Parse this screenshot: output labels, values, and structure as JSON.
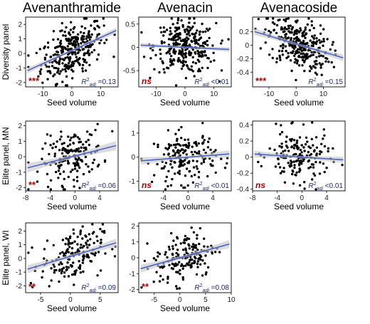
{
  "colors": {
    "point": "#000000",
    "fit_line": "#4a63c8",
    "ci_band": "#c9c9c9",
    "significance": "#b30000",
    "r2_text": "#1a2c7a"
  },
  "chart_data": [
    {
      "type": "scatter",
      "row": 0,
      "col": 0,
      "column_title": "Avenanthramide",
      "row_label": "Diversity panel",
      "xlabel": "Seed volume",
      "xlim": [
        -16,
        16
      ],
      "ylim": [
        -2.3,
        2.5
      ],
      "xticks": [
        -10,
        0,
        10
      ],
      "xtick_labels": [
        "-10",
        "0",
        "10"
      ],
      "yticks": [
        -2,
        -1,
        0,
        1,
        2
      ],
      "ytick_labels": [
        "-2",
        "-1",
        "0",
        "1",
        "2"
      ],
      "fit": {
        "slope": 0.09,
        "intercept": 0.2,
        "ci": 0.2
      },
      "significance": "***",
      "r2_label": "=0.13",
      "n_points": 300
    },
    {
      "type": "scatter",
      "row": 0,
      "col": 1,
      "column_title": "Avenacin",
      "row_label": "",
      "xlabel": "Seed volume",
      "xlim": [
        -16,
        16
      ],
      "ylim": [
        -0.85,
        0.65
      ],
      "xticks": [
        -10,
        0,
        10
      ],
      "xtick_labels": [
        "-10",
        "0",
        "10"
      ],
      "yticks": [
        -0.5,
        0,
        0.5
      ],
      "ytick_labels": [
        "-0.5",
        "0",
        "0.5"
      ],
      "fit": {
        "slope": -0.003,
        "intercept": 0.0,
        "ci": 0.05
      },
      "significance": "ns",
      "r2_label": "<0.01",
      "n_points": 300
    },
    {
      "type": "scatter",
      "row": 0,
      "col": 2,
      "column_title": "Avenacoside",
      "row_label": "",
      "xlabel": "Seed volume",
      "xlim": [
        -16,
        18
      ],
      "ylim": [
        -0.62,
        0.42
      ],
      "xticks": [
        -10,
        0,
        10
      ],
      "xtick_labels": [
        "-10",
        "0",
        "10"
      ],
      "yticks": [
        -0.4,
        -0.2,
        0,
        0.2
      ],
      "ytick_labels": [
        "-0.4",
        "-0.2",
        "0",
        "0.2"
      ],
      "fit": {
        "slope": -0.012,
        "intercept": 0.02,
        "ci": 0.05
      },
      "significance": "***",
      "r2_label": "=0.15",
      "n_points": 300
    },
    {
      "type": "scatter",
      "row": 1,
      "col": 0,
      "column_title": "",
      "row_label": "Elite panel, MN",
      "xlabel": "Seed volume",
      "xlim": [
        -8,
        7
      ],
      "ylim": [
        -2.2,
        2.3
      ],
      "xticks": [
        -8,
        -4,
        0,
        4
      ],
      "xtick_labels": [
        "-8",
        "-4",
        "0",
        "4"
      ],
      "yticks": [
        -2,
        -1,
        0,
        1,
        2
      ],
      "ytick_labels": [
        "-2",
        "-1",
        "0",
        "1",
        "2"
      ],
      "fit": {
        "slope": 0.1,
        "intercept": 0.05,
        "ci": 0.3
      },
      "significance": "**",
      "r2_label": "=0.06",
      "n_points": 170
    },
    {
      "type": "scatter",
      "row": 1,
      "col": 1,
      "column_title": "",
      "row_label": "",
      "xlabel": "Seed volume",
      "xlim": [
        -8,
        7
      ],
      "ylim": [
        -1.4,
        1.5
      ],
      "xticks": [
        -4,
        0,
        4
      ],
      "xtick_labels": [
        "-4",
        "0",
        "4"
      ],
      "yticks": [
        -1,
        0,
        1
      ],
      "ytick_labels": [
        "-1",
        "0",
        "1"
      ],
      "fit": {
        "slope": 0.02,
        "intercept": 0.0,
        "ci": 0.15
      },
      "significance": "ns",
      "r2_label": "<0.01",
      "n_points": 170
    },
    {
      "type": "scatter",
      "row": 1,
      "col": 2,
      "column_title": "",
      "row_label": "",
      "xlabel": "Seed volume",
      "xlim": [
        -8,
        7
      ],
      "ylim": [
        -0.42,
        0.45
      ],
      "xticks": [
        -8,
        -4,
        0,
        4
      ],
      "xtick_labels": [
        "-8",
        "-4",
        "0",
        "4"
      ],
      "yticks": [
        -0.4,
        -0.2,
        0,
        0.2,
        0.4
      ],
      "ytick_labels": [
        "-0.4",
        "-0.2",
        "0",
        "0.2",
        "0.4"
      ],
      "fit": {
        "slope": -0.005,
        "intercept": 0.0,
        "ci": 0.04
      },
      "significance": "ns",
      "r2_label": "<0.01",
      "n_points": 170
    },
    {
      "type": "scatter",
      "row": 2,
      "col": 0,
      "column_title": "",
      "row_label": "Elite panel, WI",
      "xlabel": "Seed volume",
      "xlim": [
        -7.5,
        8
      ],
      "ylim": [
        -2.5,
        2.6
      ],
      "xticks": [
        -5,
        0,
        5
      ],
      "xtick_labels": [
        "-5",
        "0",
        "5"
      ],
      "yticks": [
        -2,
        -1,
        0,
        1,
        2
      ],
      "ytick_labels": [
        "-2",
        "-1",
        "0",
        "1",
        "2"
      ],
      "fit": {
        "slope": 0.13,
        "intercept": 0.15,
        "ci": 0.3
      },
      "significance": "**",
      "r2_label": "=0.09",
      "n_points": 170
    },
    {
      "type": "scatter",
      "row": 2,
      "col": 1,
      "column_title": "",
      "row_label": "",
      "xlabel": "Seed volume",
      "xlim": [
        -8,
        10
      ],
      "ylim": [
        -2.2,
        2.2
      ],
      "xticks": [
        -5,
        0,
        5,
        10
      ],
      "xtick_labels": [
        "-5",
        "0",
        "5",
        "10"
      ],
      "yticks": [
        -2,
        -1,
        0,
        1,
        2
      ],
      "ytick_labels": [
        "-2",
        "-1",
        "0",
        "1",
        "2"
      ],
      "fit": {
        "slope": 0.09,
        "intercept": 0.0,
        "ci": 0.25
      },
      "significance": "**",
      "r2_label": "=0.08",
      "n_points": 170
    }
  ]
}
